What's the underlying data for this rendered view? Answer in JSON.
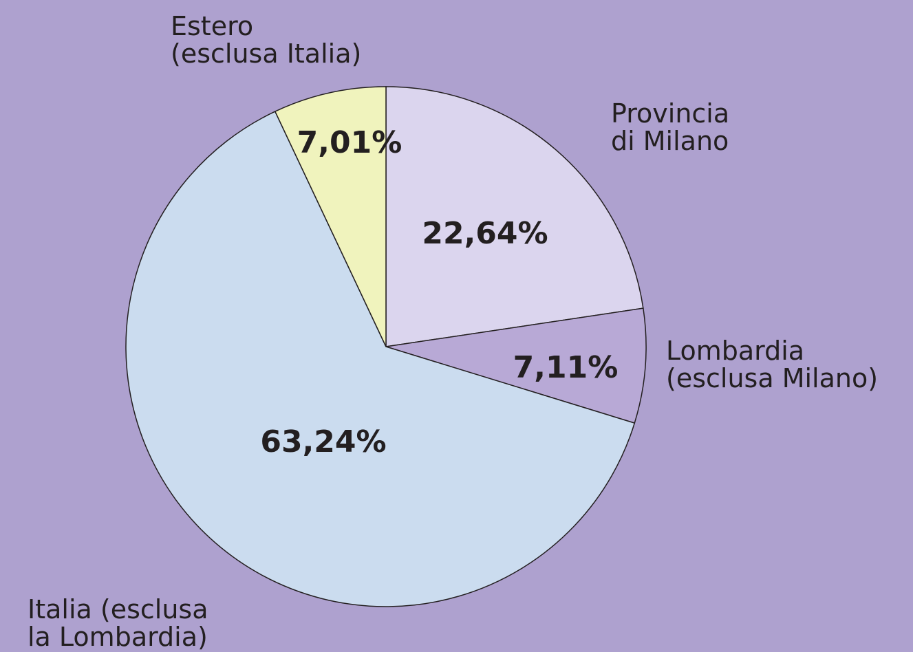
{
  "chart_data": {
    "type": "pie",
    "categories": [
      "Provincia\ndi Milano",
      "Lombardia\n(esclusa Milano)",
      "Italia (esclusa\nla Lombardia)",
      "Estero\n(esclusa Italia)"
    ],
    "values": [
      22.64,
      7.11,
      63.24,
      7.01
    ],
    "value_labels": [
      "22,64%",
      "7,11%",
      "63,24%",
      "7,01%"
    ],
    "colors": [
      "#dbd5ee",
      "#b8a9d6",
      "#cbdcef",
      "#f0f3bd"
    ]
  }
}
